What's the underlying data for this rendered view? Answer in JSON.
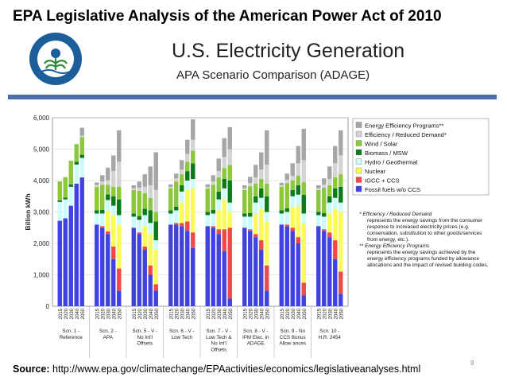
{
  "slide": {
    "title": "EPA Legislative Analysis of the American Power Act of 2010",
    "source_label": "Source:",
    "source_url": "http://www.epa.gov/climatechange/EPAactivities/economics/legislativeanalyses.html",
    "page_number": "9",
    "logo_text": "UNITED STATES ENVIRONMENTAL PROTECTION AGENCY"
  },
  "annotations": [
    {
      "head": "* Efficiency / Reduced Demand",
      "body": "represents the energy savings from the consumer response to increased electricity prices (e.g. conservation, substitution to other goods/services from energy, etc.)."
    },
    {
      "head": "** Energy Efficiency Programs",
      "body": "represents the energy savings achieved by the energy efficiency programs funded by allowance allocations and the impact of revised building codes."
    }
  ],
  "chart_data": {
    "type": "bar",
    "stacked": true,
    "title": "U.S. Electricity Generation",
    "subtitle": "APA Scenario Comparison (ADAGE)",
    "ylabel": "Billion kWh",
    "ylim": [
      0,
      6000
    ],
    "yticks": [
      "0",
      "1,000",
      "2,000",
      "3,000",
      "4,000",
      "5,000",
      "6,000"
    ],
    "years": [
      "2015",
      "2020",
      "2030",
      "2040",
      "2050"
    ],
    "legend": [
      {
        "name": "Energy Efficiency Programs**",
        "color": "#a6a6a6"
      },
      {
        "name": "Efficiency / Reduced Demand*",
        "color": "#d4d4d4"
      },
      {
        "name": "Wind / Solar",
        "color": "#8cc83c"
      },
      {
        "name": "Biomass / MSW",
        "color": "#0a7a1a"
      },
      {
        "name": "Hydro / Geothermal",
        "color": "#ccfcfc"
      },
      {
        "name": "Nuclear",
        "color": "#fafa5a"
      },
      {
        "name": "IGCC + CCS",
        "color": "#ee4a4a"
      },
      {
        "name": "Fossil fuels w/o CCS",
        "color": "#4242e0"
      }
    ],
    "groups": [
      {
        "label": [
          "Scn. 1 -",
          "Reference"
        ],
        "bars": [
          [
            2720,
            0,
            0,
            600,
            50,
            600,
            0,
            0
          ],
          [
            2800,
            0,
            0,
            600,
            60,
            650,
            0,
            0
          ],
          [
            3200,
            0,
            0,
            600,
            80,
            750,
            0,
            0
          ],
          [
            3900,
            0,
            0,
            610,
            90,
            560,
            0,
            0
          ],
          [
            4100,
            0,
            0,
            620,
            100,
            560,
            50,
            250
          ]
        ]
      },
      {
        "label": [
          "Scn. 2 -",
          "APA"
        ],
        "bars": [
          [
            2600,
            0,
            0,
            350,
            100,
            750,
            60,
            80
          ],
          [
            2500,
            50,
            0,
            400,
            120,
            800,
            100,
            200
          ],
          [
            2300,
            80,
            650,
            350,
            180,
            300,
            150,
            400
          ],
          [
            1500,
            400,
            1000,
            300,
            300,
            300,
            500,
            500
          ],
          [
            500,
            700,
            1400,
            300,
            500,
            400,
            800,
            1000
          ]
        ]
      },
      {
        "label": [
          "Scn. 5 - V -",
          "No Int'l",
          "Offsets"
        ],
        "bars": [
          [
            2500,
            0,
            0,
            350,
            100,
            750,
            50,
            100
          ],
          [
            2300,
            50,
            0,
            400,
            120,
            800,
            100,
            200
          ],
          [
            1800,
            100,
            650,
            350,
            200,
            500,
            200,
            400
          ],
          [
            1000,
            300,
            1000,
            350,
            400,
            400,
            400,
            600
          ],
          [
            500,
            200,
            1100,
            300,
            600,
            300,
            700,
            1200
          ]
        ]
      },
      {
        "label": [
          "Scn. 6 - V -",
          "Low Tech"
        ],
        "bars": [
          [
            2600,
            0,
            0,
            350,
            100,
            700,
            50,
            80
          ],
          [
            2600,
            50,
            0,
            400,
            120,
            800,
            100,
            150
          ],
          [
            2550,
            100,
            650,
            350,
            200,
            350,
            150,
            300
          ],
          [
            2400,
            300,
            1000,
            300,
            300,
            300,
            250,
            450
          ],
          [
            1850,
            500,
            1400,
            300,
            500,
            400,
            350,
            650
          ]
        ]
      },
      {
        "label": [
          "Scn. 7 - V -",
          "Low Tech &",
          "No Int'l",
          "Offsets"
        ],
        "bars": [
          [
            2550,
            0,
            0,
            350,
            100,
            750,
            50,
            80
          ],
          [
            2500,
            50,
            0,
            400,
            120,
            800,
            100,
            200
          ],
          [
            2300,
            150,
            600,
            350,
            250,
            450,
            200,
            400
          ],
          [
            1750,
            700,
            950,
            350,
            300,
            350,
            350,
            600
          ],
          [
            250,
            2250,
            500,
            300,
            700,
            500,
            500,
            700
          ]
        ]
      },
      {
        "label": [
          "Scn. 8 - V -",
          "IPM Elec. in",
          "ADAGE"
        ],
        "bars": [
          [
            2500,
            0,
            0,
            350,
            100,
            750,
            50,
            100
          ],
          [
            2400,
            50,
            0,
            400,
            120,
            850,
            100,
            200
          ],
          [
            2200,
            100,
            650,
            350,
            200,
            400,
            200,
            400
          ],
          [
            1800,
            300,
            1000,
            350,
            300,
            300,
            300,
            550
          ],
          [
            500,
            800,
            1400,
            300,
            500,
            400,
            600,
            1100
          ]
        ]
      },
      {
        "label": [
          "Scn. 9 - No",
          "CCS Bonus",
          "Allow ances"
        ],
        "bars": [
          [
            2600,
            0,
            0,
            350,
            100,
            750,
            50,
            80
          ],
          [
            2550,
            50,
            0,
            400,
            120,
            800,
            100,
            200
          ],
          [
            2400,
            100,
            650,
            350,
            200,
            300,
            150,
            400
          ],
          [
            2000,
            200,
            1000,
            350,
            300,
            300,
            400,
            550
          ],
          [
            350,
            400,
            1900,
            300,
            600,
            400,
            700,
            1000
          ]
        ]
      },
      {
        "label": [
          "Scn. 10 -",
          "H.R. 2454"
        ],
        "bars": [
          [
            2550,
            0,
            0,
            350,
            100,
            700,
            50,
            100
          ],
          [
            2400,
            50,
            0,
            400,
            120,
            800,
            100,
            200
          ],
          [
            2200,
            150,
            600,
            350,
            200,
            350,
            200,
            400
          ],
          [
            1500,
            600,
            1000,
            350,
            300,
            350,
            450,
            550
          ],
          [
            400,
            700,
            1900,
            300,
            500,
            400,
            600,
            800
          ]
        ]
      }
    ]
  }
}
